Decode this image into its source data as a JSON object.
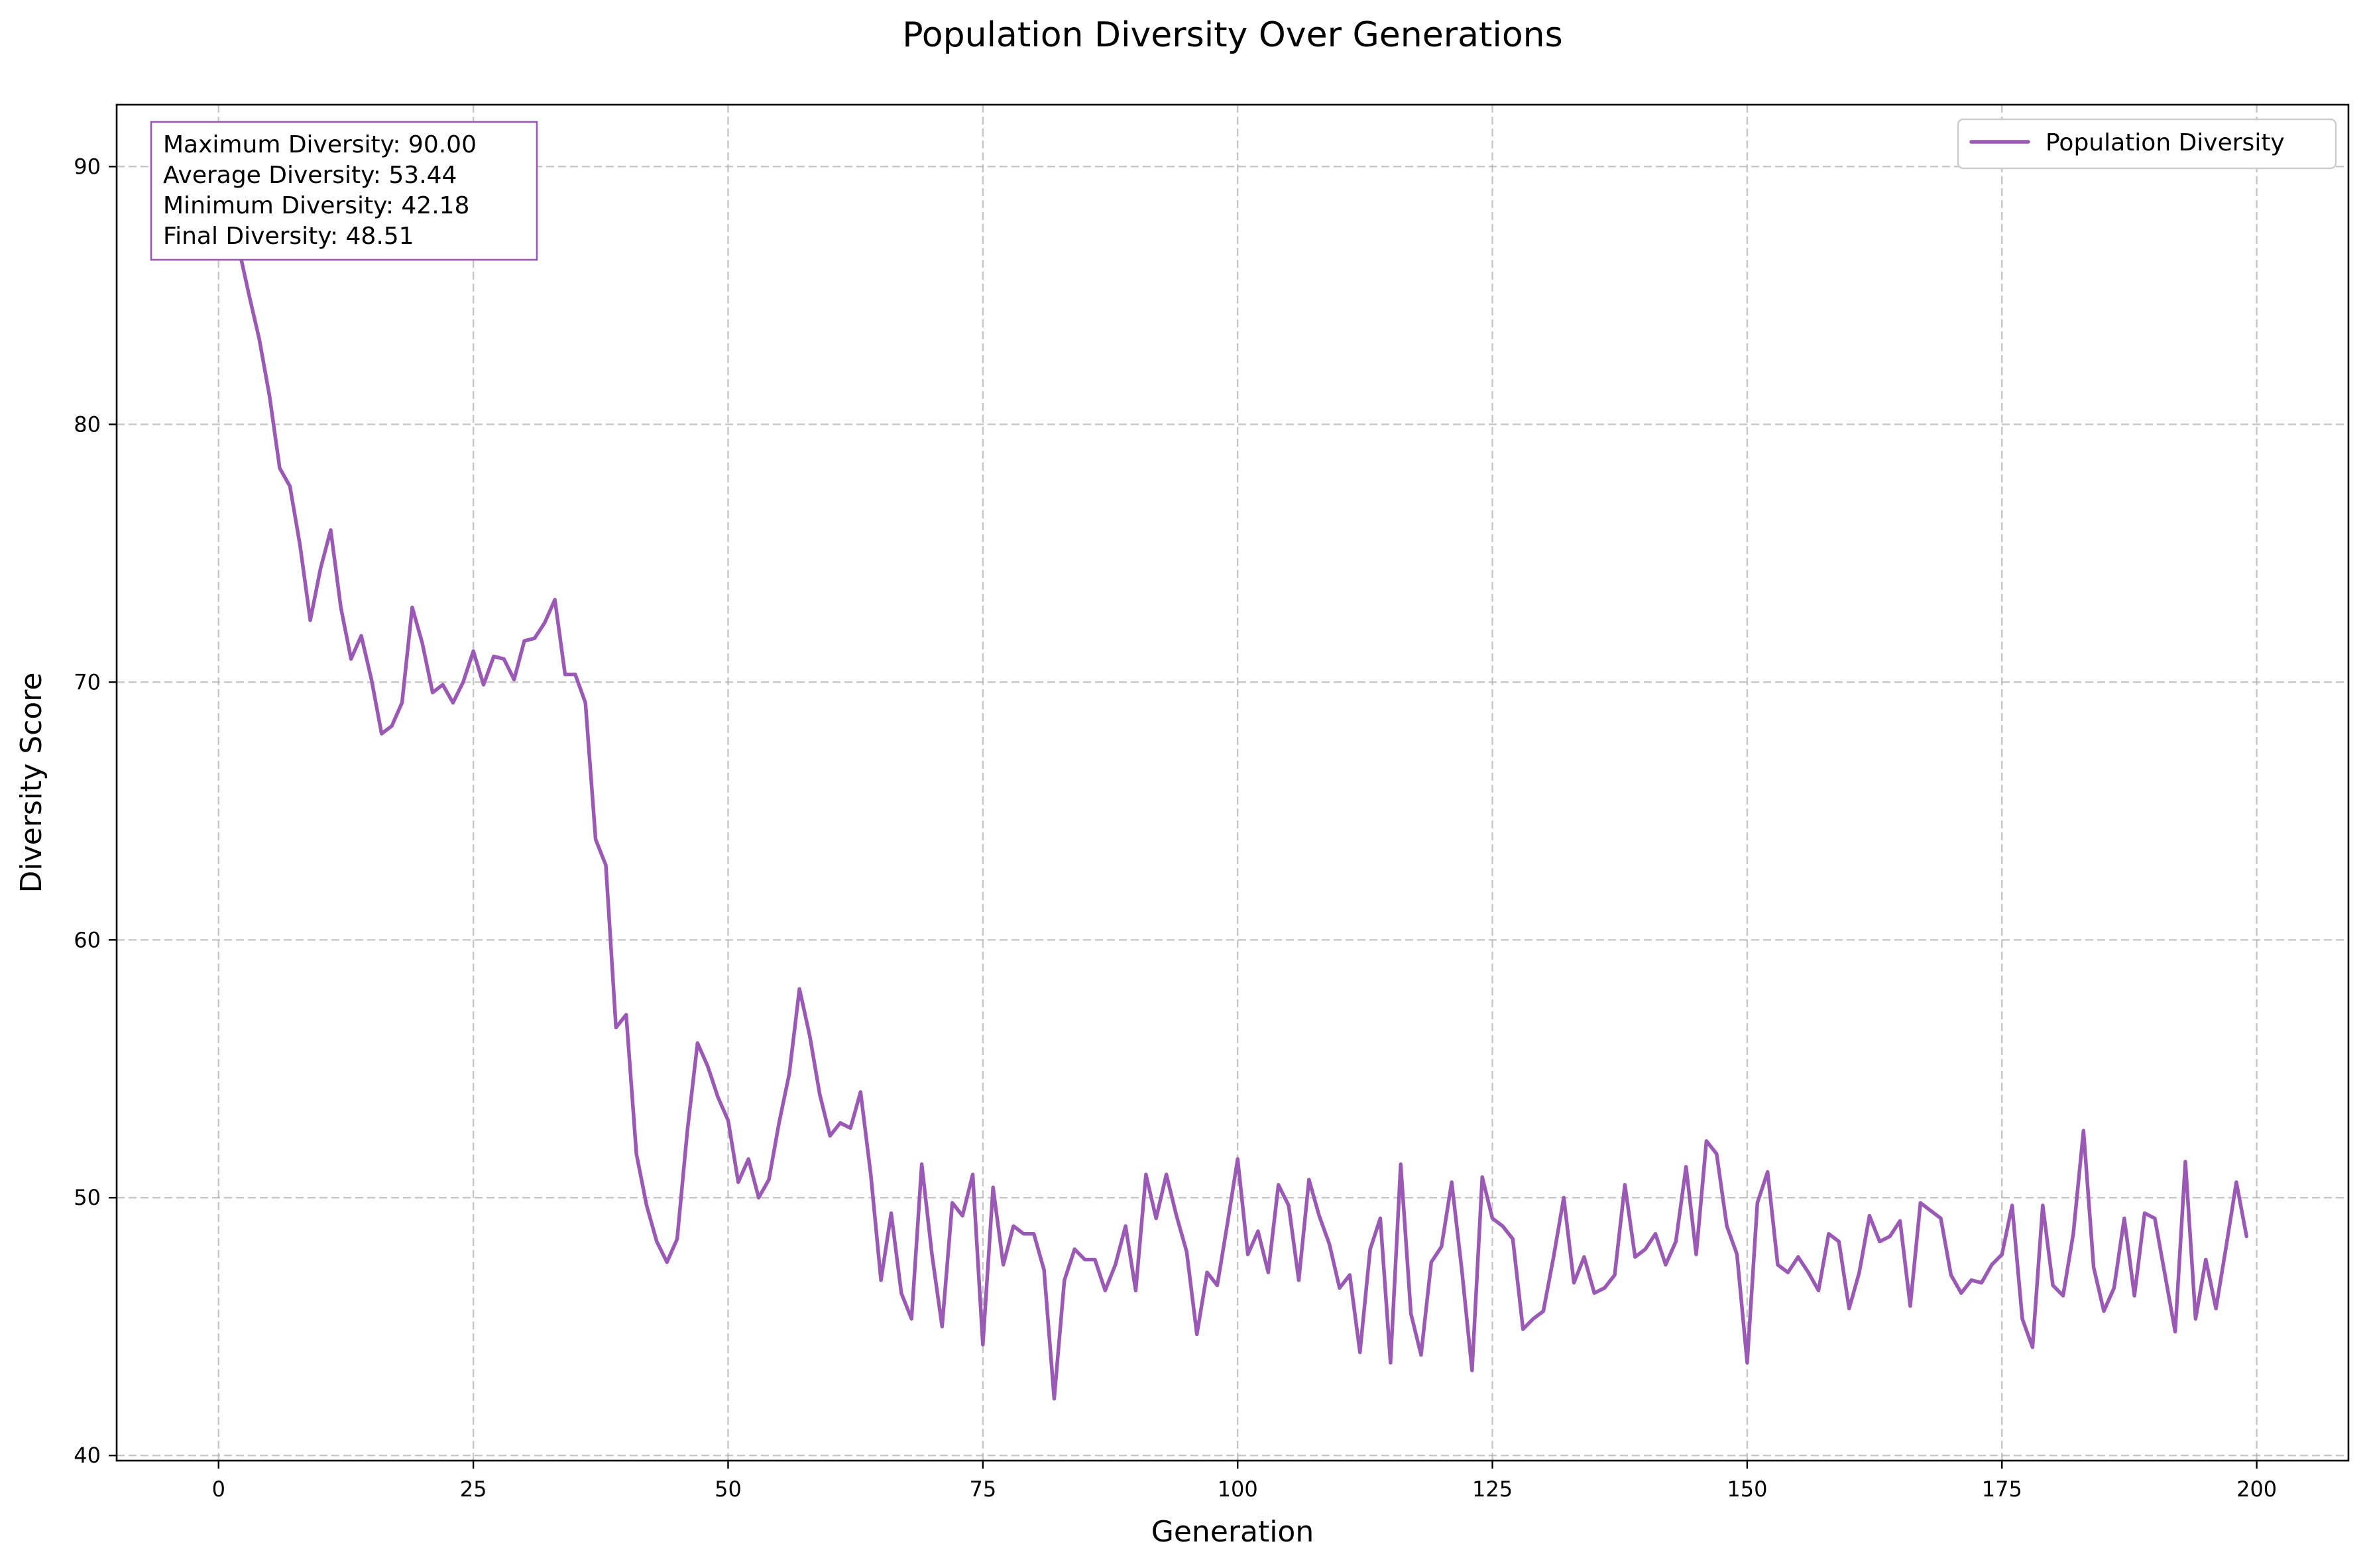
{
  "chart_data": {
    "type": "line",
    "title": "Population Diversity Over Generations",
    "xlabel": "Generation",
    "ylabel": "Diversity Score",
    "xlim": [
      -10,
      209
    ],
    "ylim": [
      39.8,
      92.4
    ],
    "xticks": [
      0,
      25,
      50,
      75,
      100,
      125,
      150,
      175,
      200
    ],
    "yticks": [
      40,
      50,
      60,
      70,
      80,
      90
    ],
    "grid": true,
    "legend_position": "top-right",
    "line_color": "#9b59b6",
    "series": [
      {
        "name": "Population Diversity",
        "x_start": 0,
        "x_step": 1,
        "values": [
          90.0,
          88.6,
          86.8,
          85.0,
          83.3,
          81.1,
          78.3,
          77.6,
          75.3,
          72.4,
          74.4,
          75.9,
          72.9,
          70.9,
          71.8,
          70.1,
          68.0,
          68.3,
          69.2,
          72.9,
          71.5,
          69.6,
          69.9,
          69.2,
          70.0,
          71.2,
          69.9,
          71.0,
          70.9,
          70.1,
          71.6,
          71.7,
          72.3,
          73.2,
          70.3,
          70.3,
          69.2,
          63.9,
          62.9,
          56.6,
          57.1,
          51.7,
          49.7,
          48.3,
          47.5,
          48.4,
          52.6,
          56.0,
          55.1,
          53.9,
          53.0,
          50.6,
          51.5,
          50.0,
          50.7,
          52.9,
          54.8,
          58.1,
          56.3,
          54.0,
          52.4,
          52.9,
          52.7,
          54.1,
          50.9,
          46.8,
          49.4,
          46.3,
          45.3,
          51.3,
          47.8,
          45.0,
          49.8,
          49.3,
          50.9,
          44.3,
          50.4,
          47.4,
          48.9,
          48.6,
          48.6,
          47.2,
          42.2,
          46.8,
          48.0,
          47.6,
          47.6,
          46.4,
          47.4,
          48.9,
          46.4,
          50.9,
          49.2,
          50.9,
          49.3,
          47.9,
          44.7,
          47.1,
          46.6,
          49.0,
          51.5,
          47.8,
          48.7,
          47.1,
          50.5,
          49.7,
          46.8,
          50.7,
          49.3,
          48.2,
          46.5,
          47.0,
          44.0,
          48.0,
          49.2,
          43.6,
          51.3,
          45.5,
          43.9,
          47.5,
          48.1,
          50.6,
          47.2,
          43.3,
          50.8,
          49.2,
          48.9,
          48.4,
          44.9,
          45.3,
          45.6,
          47.7,
          50.0,
          46.7,
          47.7,
          46.3,
          46.5,
          47.0,
          50.5,
          47.7,
          48.0,
          48.6,
          47.4,
          48.3,
          51.2,
          47.8,
          52.2,
          51.7,
          48.9,
          47.8,
          43.6,
          49.8,
          51.0,
          47.4,
          47.1,
          47.7,
          47.1,
          46.4,
          48.6,
          48.3,
          45.7,
          47.1,
          49.3,
          48.3,
          48.5,
          49.1,
          45.8,
          49.8,
          49.5,
          49.2,
          47.0,
          46.3,
          46.8,
          46.7,
          47.4,
          47.8,
          49.7,
          45.3,
          44.2,
          49.7,
          46.6,
          46.2,
          48.6,
          52.6,
          47.3,
          45.6,
          46.5,
          49.2,
          46.2,
          49.4,
          49.2,
          47.0,
          44.8,
          51.4,
          45.3,
          47.6,
          45.7,
          48.1,
          50.6,
          48.5
        ]
      }
    ],
    "stats_box": [
      "Maximum Diversity: 90.00",
      "Average Diversity: 53.44",
      "Minimum Diversity: 42.18",
      "Final Diversity: 48.51"
    ]
  }
}
